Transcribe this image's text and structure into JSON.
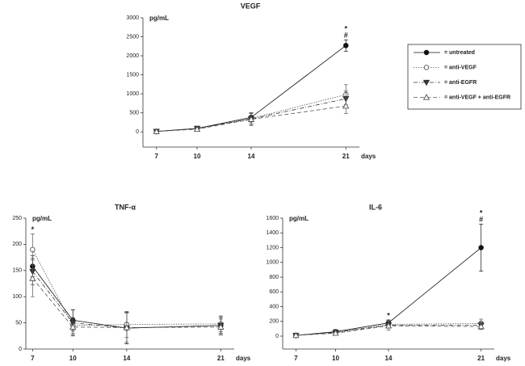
{
  "chart_data": [
    {
      "type": "line",
      "title": "VEGF",
      "y_label": "pg/mL",
      "x_label": "days",
      "x": [
        7,
        10,
        14,
        21
      ],
      "xlim": [
        6,
        22
      ],
      "xticks": [
        7,
        10,
        14,
        21
      ],
      "ylim": [
        -400,
        3000
      ],
      "yticks": [
        0,
        500,
        1000,
        1500,
        2000,
        2500,
        3000
      ],
      "legend": "right",
      "series": [
        {
          "name": "= untreated",
          "color": "#111111",
          "line_style": "solid",
          "marker": "filled-circle",
          "values": [
            10,
            90,
            380,
            2270
          ],
          "errors": [
            10,
            30,
            120,
            150
          ]
        },
        {
          "name": "= anti-VEGF",
          "color": "#555555",
          "line_style": "dotted",
          "marker": "open-circle",
          "values": [
            10,
            80,
            350,
            980
          ],
          "errors": [
            10,
            30,
            150,
            260
          ]
        },
        {
          "name": "= anti-EGFR",
          "color": "#333333",
          "line_style": "dashdot",
          "marker": "filled-triangle-down",
          "values": [
            10,
            90,
            340,
            870
          ],
          "errors": [
            10,
            30,
            140,
            200
          ]
        },
        {
          "name": "= anti-VEGF + anti-EGFR",
          "color": "#555555",
          "line_style": "dashed",
          "marker": "open-triangle-up",
          "values": [
            10,
            70,
            330,
            680
          ],
          "errors": [
            10,
            30,
            170,
            200
          ]
        }
      ],
      "annotations": [
        {
          "x": 21,
          "labels": [
            "*",
            "#"
          ]
        }
      ]
    },
    {
      "type": "line",
      "title": "TNF-α",
      "y_label": "pg/mL",
      "x_label": "days",
      "x": [
        7,
        10,
        14,
        21
      ],
      "xlim": [
        6.5,
        22
      ],
      "xticks": [
        7,
        10,
        14,
        21
      ],
      "ylim": [
        0,
        250
      ],
      "yticks": [
        0,
        50,
        100,
        150,
        200,
        250
      ],
      "series": [
        {
          "color": "#111111",
          "line_style": "solid",
          "marker": "filled-circle",
          "values": [
            158,
            55,
            40,
            45
          ],
          "errors": [
            20,
            20,
            30,
            15
          ]
        },
        {
          "color": "#555555",
          "line_style": "dotted",
          "marker": "open-circle",
          "values": [
            190,
            45,
            47,
            48
          ],
          "errors": [
            30,
            15,
            25,
            15
          ]
        },
        {
          "color": "#333333",
          "line_style": "dashdot",
          "marker": "filled-triangle-down",
          "values": [
            148,
            50,
            40,
            45
          ],
          "errors": [
            25,
            25,
            30,
            18
          ]
        },
        {
          "color": "#555555",
          "line_style": "dashed",
          "marker": "open-triangle-up",
          "values": [
            135,
            42,
            41,
            42
          ],
          "errors": [
            35,
            15,
            28,
            15
          ]
        }
      ],
      "annotations": [
        {
          "x": 7,
          "labels": [
            "*"
          ]
        }
      ]
    },
    {
      "type": "line",
      "title": "IL-6",
      "y_label": "pg/mL",
      "x_label": "days",
      "x": [
        7,
        10,
        14,
        21
      ],
      "xlim": [
        6,
        22
      ],
      "xticks": [
        7,
        10,
        14,
        21
      ],
      "ylim": [
        -175,
        1600
      ],
      "yticks": [
        0,
        200,
        400,
        600,
        800,
        1000,
        1200,
        1400,
        1600
      ],
      "series": [
        {
          "color": "#111111",
          "line_style": "solid",
          "marker": "filled-circle",
          "values": [
            10,
            60,
            180,
            1200
          ],
          "errors": [
            10,
            30,
            40,
            320
          ]
        },
        {
          "color": "#555555",
          "line_style": "dotted",
          "marker": "open-circle",
          "values": [
            10,
            50,
            160,
            170
          ],
          "errors": [
            10,
            40,
            50,
            60
          ]
        },
        {
          "color": "#333333",
          "line_style": "dashdot",
          "marker": "filled-triangle-down",
          "values": [
            10,
            50,
            150,
            150
          ],
          "errors": [
            10,
            30,
            40,
            50
          ]
        },
        {
          "color": "#555555",
          "line_style": "dashed",
          "marker": "open-triangle-up",
          "values": [
            10,
            40,
            140,
            130
          ],
          "errors": [
            10,
            25,
            60,
            40
          ]
        }
      ],
      "annotations": [
        {
          "x": 14,
          "labels": [
            "*"
          ]
        },
        {
          "x": 21,
          "labels": [
            "*",
            "#"
          ]
        }
      ]
    }
  ]
}
